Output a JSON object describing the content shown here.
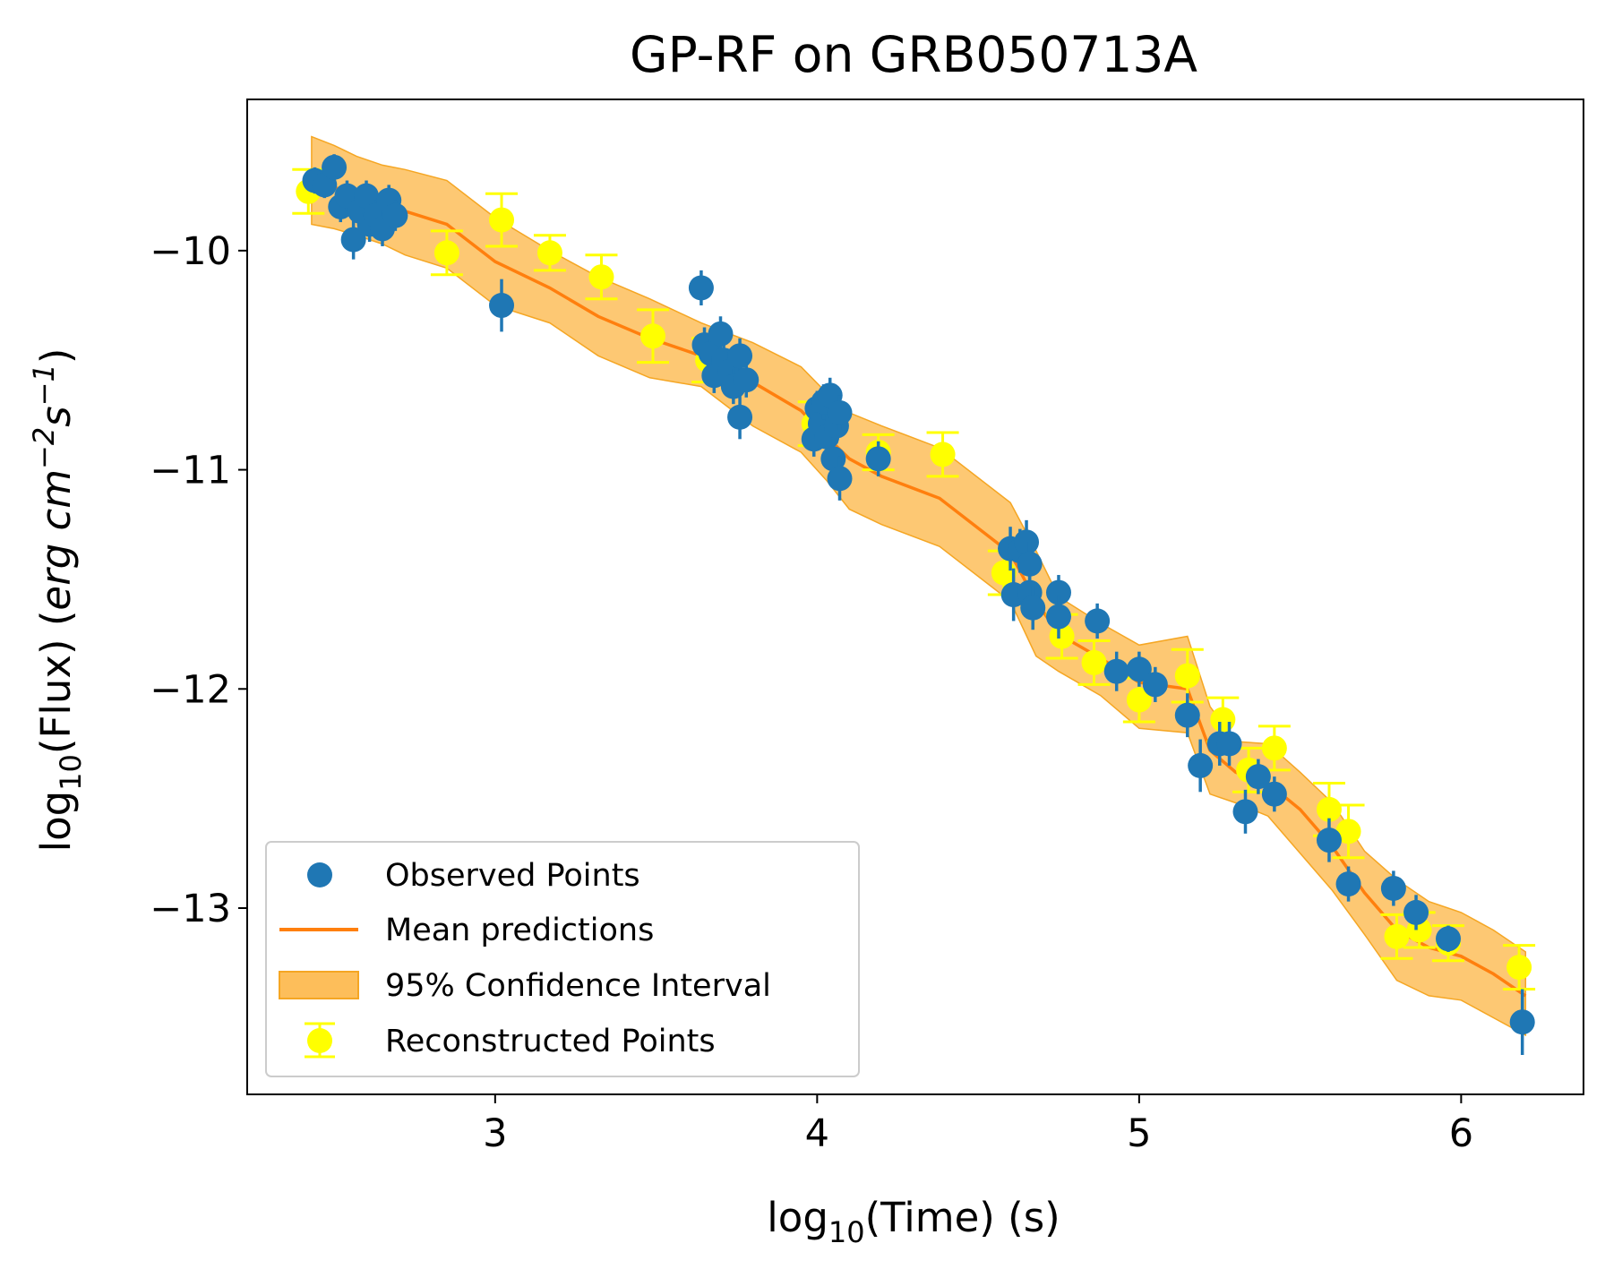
{
  "chart_data": {
    "type": "scatter",
    "title": "GP-RF on GRB050713A",
    "xlabel": {
      "pre": "log",
      "sub": "10",
      "post": "(Time) (s)"
    },
    "ylabel": {
      "pre": "log",
      "sub": "10",
      "mid": "(Flux) (",
      "unit": "erg cm",
      "exp1": "−2",
      "unit2": "s",
      "exp2": "−1",
      "post": ")"
    },
    "xlim": [
      2.23,
      6.38
    ],
    "ylim": [
      -13.85,
      -9.31
    ],
    "xticks": [
      3,
      4,
      5,
      6
    ],
    "xtick_labels": [
      "3",
      "4",
      "5",
      "6"
    ],
    "yticks": [
      -10,
      -11,
      -12,
      -13
    ],
    "ytick_labels": [
      "−10",
      "−11",
      "−12",
      "−13"
    ],
    "grid": false,
    "legend_position": "lower-left",
    "colors": {
      "observed": "#1f77b4",
      "mean": "#ff7f0e",
      "band": "#fdbe5a",
      "band_edge": "#f5a623",
      "reconstructed": "#ffff00"
    },
    "legend": [
      {
        "key": "observed",
        "label": "Observed Points"
      },
      {
        "key": "mean",
        "label": "Mean predictions"
      },
      {
        "key": "band",
        "label": "95% Confidence Interval"
      },
      {
        "key": "reconstructed",
        "label": "Reconstructed Points"
      }
    ],
    "mean_prediction": {
      "x": [
        2.43,
        2.5,
        2.57,
        2.65,
        2.72,
        2.85,
        3.0,
        3.17,
        3.32,
        3.48,
        3.64,
        3.8,
        3.95,
        4.03,
        4.1,
        4.2,
        4.38,
        4.6,
        4.68,
        4.75,
        4.88,
        5.0,
        5.15,
        5.22,
        5.3,
        5.4,
        5.5,
        5.6,
        5.7,
        5.8,
        5.9,
        6.0,
        6.1,
        6.2
      ],
      "y": [
        -9.68,
        -9.71,
        -9.75,
        -9.79,
        -9.82,
        -9.88,
        -10.05,
        -10.17,
        -10.3,
        -10.4,
        -10.48,
        -10.6,
        -10.73,
        -10.85,
        -10.95,
        -11.03,
        -11.13,
        -11.38,
        -11.6,
        -11.75,
        -11.86,
        -11.97,
        -12.0,
        -12.28,
        -12.38,
        -12.43,
        -12.55,
        -12.72,
        -12.93,
        -13.1,
        -13.18,
        -13.22,
        -13.3,
        -13.4
      ]
    },
    "confidence_interval": {
      "x": [
        2.43,
        2.5,
        2.57,
        2.65,
        2.72,
        2.85,
        3.0,
        3.17,
        3.32,
        3.48,
        3.64,
        3.8,
        3.95,
        4.03,
        4.1,
        4.2,
        4.38,
        4.6,
        4.68,
        4.75,
        4.88,
        5.0,
        5.15,
        5.22,
        5.3,
        5.4,
        5.5,
        5.6,
        5.7,
        5.8,
        5.9,
        6.0,
        6.1,
        6.2
      ],
      "lower": [
        -9.88,
        -9.9,
        -9.93,
        -9.97,
        -10.02,
        -10.08,
        -10.25,
        -10.33,
        -10.48,
        -10.58,
        -10.62,
        -10.8,
        -10.92,
        -11.05,
        -11.18,
        -11.25,
        -11.35,
        -11.6,
        -11.85,
        -11.92,
        -12.03,
        -12.18,
        -12.2,
        -12.48,
        -12.52,
        -12.58,
        -12.75,
        -12.92,
        -13.12,
        -13.33,
        -13.4,
        -13.42,
        -13.5,
        -13.58
      ],
      "upper": [
        -9.48,
        -9.52,
        -9.57,
        -9.61,
        -9.63,
        -9.68,
        -9.85,
        -10.0,
        -10.12,
        -10.22,
        -10.33,
        -10.42,
        -10.53,
        -10.65,
        -10.74,
        -10.8,
        -10.9,
        -11.15,
        -11.37,
        -11.58,
        -11.7,
        -11.8,
        -11.76,
        -12.08,
        -12.24,
        -12.25,
        -12.38,
        -12.52,
        -12.74,
        -12.87,
        -12.97,
        -13.02,
        -13.1,
        -13.2
      ]
    },
    "observed": [
      {
        "x": 2.44,
        "y": -9.68,
        "err": 0.06
      },
      {
        "x": 2.47,
        "y": -9.7,
        "err": 0.06
      },
      {
        "x": 2.5,
        "y": -9.62,
        "err": 0.06
      },
      {
        "x": 2.52,
        "y": -9.8,
        "err": 0.07
      },
      {
        "x": 2.54,
        "y": -9.75,
        "err": 0.07
      },
      {
        "x": 2.56,
        "y": -9.95,
        "err": 0.09
      },
      {
        "x": 2.58,
        "y": -9.82,
        "err": 0.07
      },
      {
        "x": 2.6,
        "y": -9.75,
        "err": 0.07
      },
      {
        "x": 2.61,
        "y": -9.88,
        "err": 0.08
      },
      {
        "x": 2.63,
        "y": -9.84,
        "err": 0.07
      },
      {
        "x": 2.65,
        "y": -9.9,
        "err": 0.08
      },
      {
        "x": 2.67,
        "y": -9.77,
        "err": 0.07
      },
      {
        "x": 2.69,
        "y": -9.84,
        "err": 0.07
      },
      {
        "x": 3.02,
        "y": -10.25,
        "err": 0.12
      },
      {
        "x": 3.64,
        "y": -10.17,
        "err": 0.08
      },
      {
        "x": 3.65,
        "y": -10.43,
        "err": 0.08
      },
      {
        "x": 3.67,
        "y": -10.47,
        "err": 0.08
      },
      {
        "x": 3.68,
        "y": -10.57,
        "err": 0.08
      },
      {
        "x": 3.7,
        "y": -10.38,
        "err": 0.08
      },
      {
        "x": 3.71,
        "y": -10.5,
        "err": 0.08
      },
      {
        "x": 3.73,
        "y": -10.55,
        "err": 0.08
      },
      {
        "x": 3.74,
        "y": -10.62,
        "err": 0.08
      },
      {
        "x": 3.76,
        "y": -10.48,
        "err": 0.08
      },
      {
        "x": 3.76,
        "y": -10.76,
        "err": 0.1
      },
      {
        "x": 3.78,
        "y": -10.59,
        "err": 0.08
      },
      {
        "x": 3.99,
        "y": -10.86,
        "err": 0.08
      },
      {
        "x": 4.0,
        "y": -10.72,
        "err": 0.08
      },
      {
        "x": 4.01,
        "y": -10.79,
        "err": 0.08
      },
      {
        "x": 4.02,
        "y": -10.69,
        "err": 0.08
      },
      {
        "x": 4.03,
        "y": -10.85,
        "err": 0.08
      },
      {
        "x": 4.04,
        "y": -10.66,
        "err": 0.08
      },
      {
        "x": 4.05,
        "y": -10.95,
        "err": 0.09
      },
      {
        "x": 4.06,
        "y": -10.8,
        "err": 0.08
      },
      {
        "x": 4.07,
        "y": -10.74,
        "err": 0.08
      },
      {
        "x": 4.07,
        "y": -11.04,
        "err": 0.1
      },
      {
        "x": 4.19,
        "y": -10.95,
        "err": 0.08
      },
      {
        "x": 4.6,
        "y": -11.36,
        "err": 0.1
      },
      {
        "x": 4.61,
        "y": -11.57,
        "err": 0.12
      },
      {
        "x": 4.63,
        "y": -11.37,
        "err": 0.1
      },
      {
        "x": 4.65,
        "y": -11.33,
        "err": 0.1
      },
      {
        "x": 4.66,
        "y": -11.43,
        "err": 0.1
      },
      {
        "x": 4.66,
        "y": -11.56,
        "err": 0.1
      },
      {
        "x": 4.67,
        "y": -11.63,
        "err": 0.1
      },
      {
        "x": 4.75,
        "y": -11.56,
        "err": 0.08
      },
      {
        "x": 4.75,
        "y": -11.67,
        "err": 0.1
      },
      {
        "x": 4.87,
        "y": -11.69,
        "err": 0.08
      },
      {
        "x": 4.93,
        "y": -11.92,
        "err": 0.09
      },
      {
        "x": 5.0,
        "y": -11.91,
        "err": 0.08
      },
      {
        "x": 5.05,
        "y": -11.98,
        "err": 0.08
      },
      {
        "x": 5.15,
        "y": -12.12,
        "err": 0.1
      },
      {
        "x": 5.19,
        "y": -12.35,
        "err": 0.12
      },
      {
        "x": 5.25,
        "y": -12.25,
        "err": 0.1
      },
      {
        "x": 5.28,
        "y": -12.25,
        "err": 0.1
      },
      {
        "x": 5.33,
        "y": -12.56,
        "err": 0.1
      },
      {
        "x": 5.37,
        "y": -12.4,
        "err": 0.08
      },
      {
        "x": 5.42,
        "y": -12.48,
        "err": 0.08
      },
      {
        "x": 5.59,
        "y": -12.69,
        "err": 0.1
      },
      {
        "x": 5.65,
        "y": -12.89,
        "err": 0.08
      },
      {
        "x": 5.79,
        "y": -12.91,
        "err": 0.08
      },
      {
        "x": 5.86,
        "y": -13.02,
        "err": 0.08
      },
      {
        "x": 5.96,
        "y": -13.14,
        "err": 0.06
      },
      {
        "x": 6.19,
        "y": -13.52,
        "err": 0.15
      }
    ],
    "reconstructed": [
      {
        "x": 2.42,
        "y": -9.73,
        "err": 0.1
      },
      {
        "x": 2.85,
        "y": -10.01,
        "err": 0.1
      },
      {
        "x": 3.02,
        "y": -9.86,
        "err": 0.12
      },
      {
        "x": 3.17,
        "y": -10.01,
        "err": 0.08
      },
      {
        "x": 3.33,
        "y": -10.12,
        "err": 0.1
      },
      {
        "x": 3.49,
        "y": -10.39,
        "err": 0.12
      },
      {
        "x": 3.66,
        "y": -10.5,
        "err": 0.1
      },
      {
        "x": 3.99,
        "y": -10.79,
        "err": 0.1
      },
      {
        "x": 4.19,
        "y": -10.92,
        "err": 0.08
      },
      {
        "x": 4.39,
        "y": -10.93,
        "err": 0.1
      },
      {
        "x": 4.58,
        "y": -11.47,
        "err": 0.1
      },
      {
        "x": 4.76,
        "y": -11.76,
        "err": 0.1
      },
      {
        "x": 4.86,
        "y": -11.88,
        "err": 0.1
      },
      {
        "x": 5.0,
        "y": -12.05,
        "err": 0.1
      },
      {
        "x": 5.15,
        "y": -11.94,
        "err": 0.12
      },
      {
        "x": 5.26,
        "y": -12.14,
        "err": 0.1
      },
      {
        "x": 5.34,
        "y": -12.37,
        "err": 0.1
      },
      {
        "x": 5.42,
        "y": -12.27,
        "err": 0.1
      },
      {
        "x": 5.59,
        "y": -12.55,
        "err": 0.12
      },
      {
        "x": 5.65,
        "y": -12.65,
        "err": 0.12
      },
      {
        "x": 5.8,
        "y": -13.13,
        "err": 0.1
      },
      {
        "x": 5.87,
        "y": -13.1,
        "err": 0.08
      },
      {
        "x": 5.96,
        "y": -13.16,
        "err": 0.08
      },
      {
        "x": 6.18,
        "y": -13.27,
        "err": 0.1
      }
    ]
  }
}
